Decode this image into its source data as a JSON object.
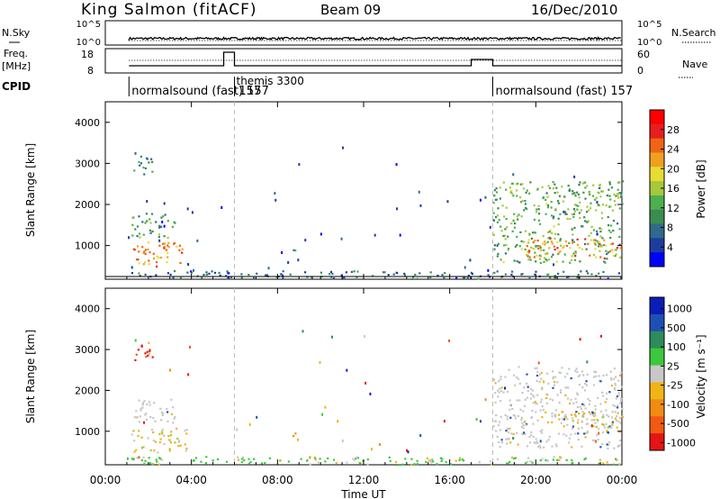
{
  "header": {
    "station": "King Salmon (fitACF)",
    "beam": "Beam 09",
    "date": "16/Dec/2010"
  },
  "nsky_panel": {
    "left_label": "N.Sky",
    "left_ticks": [
      "10^5",
      "10^0"
    ],
    "right_label": "N.Search",
    "right_ticks": [
      "10^5",
      "10^0"
    ]
  },
  "freq_panel": {
    "left_label_1": "Freq.",
    "left_label_2": "[MHz]",
    "left_ticks": [
      "18",
      "8"
    ],
    "right_label": "Nave",
    "right_ticks": [
      "60",
      "0"
    ]
  },
  "cpid": {
    "label": "CPID",
    "segments": [
      {
        "text": "normalsound (fast)  157",
        "start_hour": 1.1
      },
      {
        "text": "themis 3300",
        "start_hour": 6.0
      },
      {
        "text": "157",
        "start_hour": 6.0
      },
      {
        "text": "normalsound (fast)  157",
        "start_hour": 18.0
      }
    ]
  },
  "x_axis": {
    "label": "Time UT",
    "ticks": [
      "00:00",
      "04:00",
      "08:00",
      "12:00",
      "16:00",
      "20:00",
      "00:00"
    ],
    "range_hours": [
      0,
      24
    ],
    "mode_change_hours": [
      6.0,
      18.0
    ]
  },
  "power_panel": {
    "ylabel": "Slant Range [km]",
    "yticks": [
      "1000",
      "2000",
      "3000",
      "4000"
    ],
    "colorbar_label": "Power [dB]",
    "colorbar_ticks": [
      "4",
      "8",
      "12",
      "16",
      "20",
      "24",
      "28"
    ],
    "colors": [
      "#0000ff",
      "#1e3ca0",
      "#2f6a8c",
      "#3c8c50",
      "#4caf50",
      "#a5c83c",
      "#e6dc32",
      "#f0a020",
      "#f06414",
      "#e61e1e",
      "#ff0000"
    ]
  },
  "velocity_panel": {
    "ylabel": "Slant Range [km]",
    "yticks": [
      "1000",
      "2000",
      "3000",
      "4000"
    ],
    "colorbar_label": "Velocity [m s⁻¹]",
    "colorbar_ticks": [
      "1000",
      "500",
      "100",
      "25",
      "-25",
      "-100",
      "-500",
      "-1000"
    ],
    "colors": [
      "#0a1eb4",
      "#1e50b4",
      "#2d8c5a",
      "#3cc83c",
      "#c8c8c8",
      "#f0b414",
      "#f08c14",
      "#f05a14",
      "#e61414"
    ]
  },
  "chart_data": [
    {
      "type": "heatmap",
      "title": "Power",
      "xlabel": "Time UT",
      "ylabel": "Slant Range [km]",
      "xlim": [
        0,
        24
      ],
      "ylim": [
        180,
        4500
      ],
      "zlim": [
        0,
        30
      ],
      "zlabel": "Power [dB]",
      "regions": [
        {
          "t": [
            1.2,
            3.8
          ],
          "r": [
            500,
            1100
          ],
          "z": 22
        },
        {
          "t": [
            1.2,
            3.2
          ],
          "r": [
            1200,
            1800
          ],
          "z": 10
        },
        {
          "t": [
            1.3,
            2.2
          ],
          "r": [
            2700,
            3200
          ],
          "z": 8
        },
        {
          "t": [
            8.6,
            8.8
          ],
          "r": [
            900,
            1200
          ],
          "z": 6
        },
        {
          "t": [
            18.0,
            24.0
          ],
          "r": [
            600,
            2600
          ],
          "z": 12
        },
        {
          "t": [
            19.5,
            24.0
          ],
          "r": [
            700,
            1200
          ],
          "z": 22
        },
        {
          "t": [
            1.0,
            24.0
          ],
          "r": [
            200,
            400
          ],
          "z": 6
        }
      ]
    },
    {
      "type": "heatmap",
      "title": "Velocity",
      "xlabel": "Time UT",
      "ylabel": "Slant Range [km]",
      "xlim": [
        0,
        24
      ],
      "ylim": [
        180,
        4500
      ],
      "zlim": [
        -1000,
        1000
      ],
      "zlabel": "Velocity [m s⁻¹]",
      "regions": [
        {
          "t": [
            1.2,
            3.8
          ],
          "r": [
            500,
            1100
          ],
          "v": -100
        },
        {
          "t": [
            1.2,
            3.2
          ],
          "r": [
            1200,
            1800
          ],
          "v": 0
        },
        {
          "t": [
            1.3,
            2.2
          ],
          "r": [
            2700,
            3200
          ],
          "v": -800
        },
        {
          "t": [
            8.6,
            8.8
          ],
          "r": [
            900,
            1200
          ],
          "v": -300
        },
        {
          "t": [
            18.0,
            24.0
          ],
          "r": [
            600,
            2600
          ],
          "v": 0
        },
        {
          "t": [
            21.0,
            24.0
          ],
          "r": [
            1100,
            1500
          ],
          "v": -200
        },
        {
          "t": [
            1.0,
            24.0
          ],
          "r": [
            200,
            400
          ],
          "v": 150
        }
      ]
    }
  ]
}
